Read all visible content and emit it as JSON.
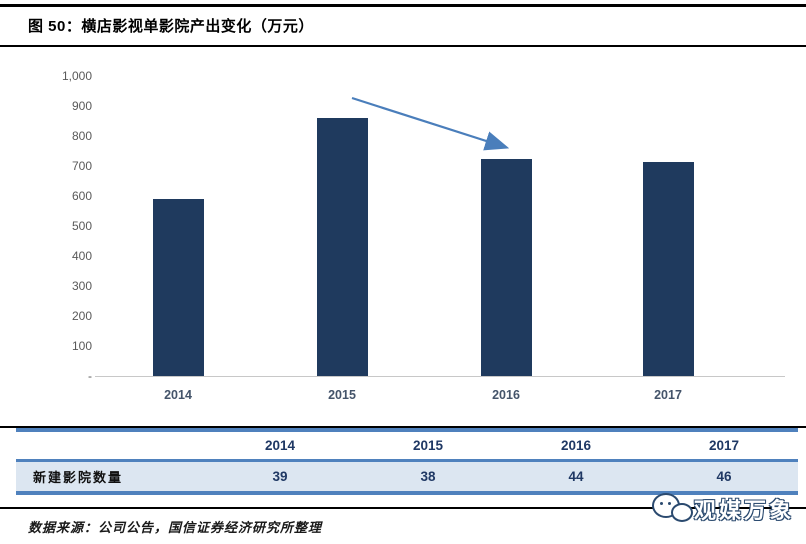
{
  "figure": {
    "title": "图 50：横店影视单影院产出变化（万元）",
    "source": "数据来源：公司公告，国信证券经济研究所整理"
  },
  "chart_data": {
    "type": "bar",
    "title": "横店影视单影院产出变化（万元）",
    "categories": [
      "2014",
      "2015",
      "2016",
      "2017"
    ],
    "values": [
      590,
      860,
      725,
      715
    ],
    "unit": "万元",
    "xlabel": "",
    "ylabel": "",
    "ylim": [
      0,
      1000
    ],
    "yticks": [
      {
        "label": "1,000",
        "value": 1000
      },
      {
        "label": "900",
        "value": 900
      },
      {
        "label": "800",
        "value": 800
      },
      {
        "label": "700",
        "value": 700
      },
      {
        "label": "600",
        "value": 600
      },
      {
        "label": "500",
        "value": 500
      },
      {
        "label": "400",
        "value": 400
      },
      {
        "label": "300",
        "value": 300
      },
      {
        "label": "200",
        "value": 200
      },
      {
        "label": "100",
        "value": 100
      },
      {
        "label": "-",
        "value": 0
      }
    ],
    "grid": false,
    "legend": "none",
    "annotation": {
      "type": "arrow",
      "from_category": "2015",
      "to_category": "2016"
    }
  },
  "table": {
    "columns": [
      "",
      "2014",
      "2015",
      "2016",
      "2017"
    ],
    "rows": [
      {
        "label": "新建影院数量",
        "values": [
          "39",
          "38",
          "44",
          "46"
        ]
      }
    ]
  },
  "watermark": {
    "icon": "wechat-icon",
    "text": "观媒万象"
  },
  "colors": {
    "bar": "#1f3a5e",
    "arrow": "#4a7ebb",
    "table_border": "#4f81bd",
    "table_row_bg": "#dce6f1",
    "table_text": "#1f3864",
    "ytick_text": "#595959",
    "xtick_text": "#44546a",
    "axis_line": "#c8c8c8",
    "wm_outline": "#2b4a6f"
  }
}
